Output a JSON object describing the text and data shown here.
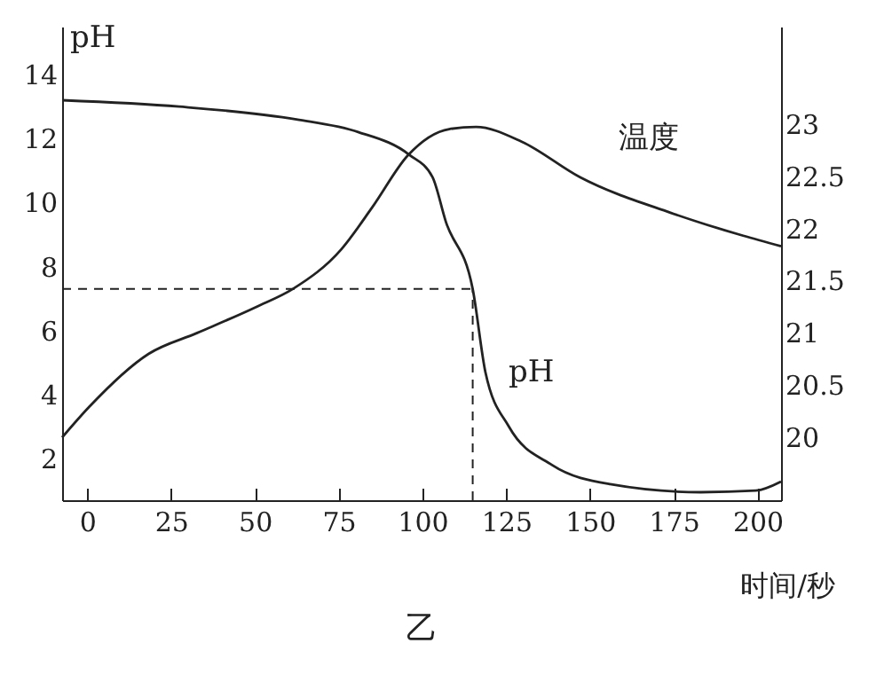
{
  "chart_data": {
    "type": "line",
    "title": "乙",
    "xlabel": "时间/秒",
    "ylabel": "pH",
    "xlim": [
      -7.5,
      207
    ],
    "xticks": [
      0,
      25,
      50,
      75,
      100,
      125,
      150,
      175,
      200
    ],
    "ylim": [
      0.7,
      15.5
    ],
    "yticks": [
      2,
      4,
      6,
      8,
      10,
      12,
      14
    ],
    "y2lim": [
      19.4,
      23.93
    ],
    "y2ticks": [
      20,
      20.5,
      21,
      21.5,
      22,
      22.5,
      23
    ],
    "series": [
      {
        "name": "pH",
        "color": "#222222",
        "x": [
          -7.5,
          27.4,
          62.4,
          81,
          96,
          103,
          107,
          115,
          118.8,
          125.8,
          138.7,
          156,
          183,
          199.5,
          207
        ],
        "values": [
          13.2,
          13.0,
          12.6,
          12.2,
          11.5,
          10.8,
          9.4,
          7.3,
          4.7,
          3.0,
          1.8,
          1.2,
          0.95,
          1.0,
          1.28
        ]
      },
      {
        "name": "温度",
        "color": "#222222",
        "axis": "y2",
        "x": [
          -7.5,
          0.5,
          18.3,
          32.8,
          50.5,
          61.3,
          75.8,
          85,
          95.7,
          108,
          116,
          129.6,
          147,
          174,
          195.7,
          207
        ],
        "values": [
          20.0,
          20.29,
          20.8,
          21.0,
          21.25,
          21.42,
          21.8,
          22.2,
          22.7,
          22.95,
          22.97,
          22.83,
          22.49,
          22.15,
          21.93,
          21.83
        ]
      }
    ],
    "ref_lines": [
      {
        "axis": "x",
        "value": 115,
        "line_style": "dashed"
      },
      {
        "axis": "y",
        "value": 7.3,
        "line_style": "dashed"
      }
    ],
    "grid": false,
    "marker": "none",
    "line_style": "solid"
  }
}
